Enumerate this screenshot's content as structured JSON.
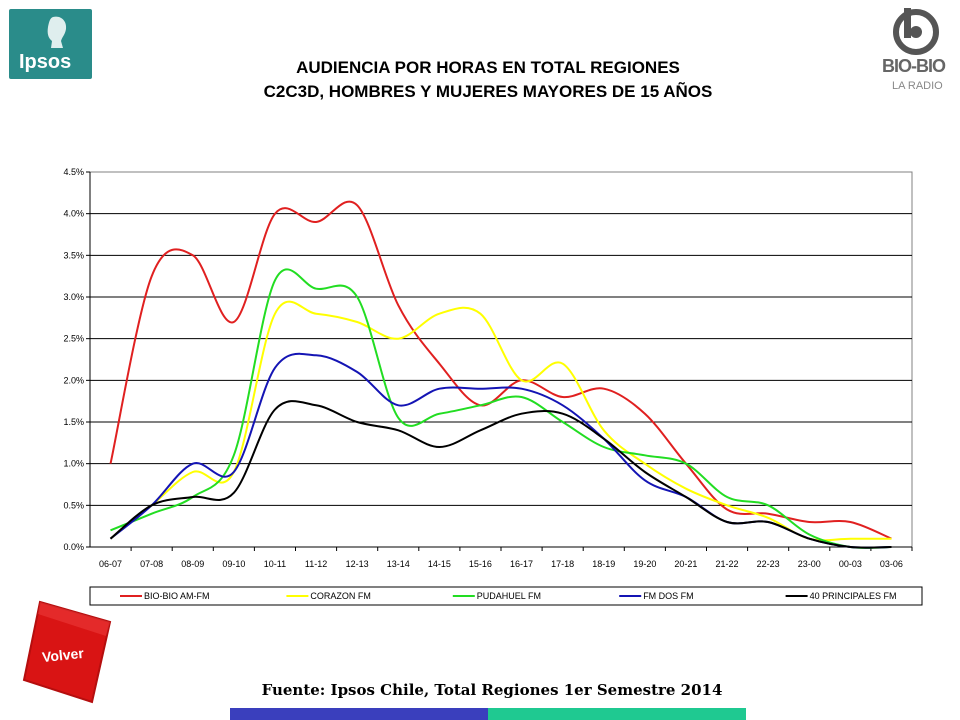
{
  "logos": {
    "left_brand": "Ipsos",
    "right_brand": "BIO-BIO",
    "right_brand_sub": "LA RADIO"
  },
  "header": {
    "title_line1": "AUDIENCIA POR HORAS EN TOTAL REGIONES",
    "title_line2": "C2C3D, HOMBRES Y MUJERES MAYORES DE 15 AÑOS"
  },
  "nav": {
    "back_label": "Volver"
  },
  "footer": {
    "source": "Fuente: Ipsos Chile, Total Regiones 1er Semestre 2014",
    "bar_colors": [
      "#3a3fbd",
      "#1fc991"
    ]
  },
  "chart_data": {
    "type": "line",
    "title": "",
    "xlabel": "",
    "ylabel": "",
    "ylim": [
      0,
      4.5
    ],
    "yticks": [
      "0.0%",
      "0.5%",
      "1.0%",
      "1.5%",
      "2.0%",
      "2.5%",
      "3.0%",
      "3.5%",
      "4.0%",
      "4.5%"
    ],
    "grid": true,
    "legend_position": "bottom",
    "smooth": true,
    "categories": [
      "06-07",
      "07-08",
      "08-09",
      "09-10",
      "10-11",
      "11-12",
      "12-13",
      "13-14",
      "14-15",
      "15-16",
      "16-17",
      "17-18",
      "18-19",
      "19-20",
      "20-21",
      "21-22",
      "22-23",
      "23-00",
      "00-03",
      "03-06"
    ],
    "series": [
      {
        "name": "BIO-BIO AM-FM",
        "color": "#e02020",
        "values": [
          1.0,
          3.25,
          3.5,
          2.7,
          4.0,
          3.9,
          4.1,
          2.9,
          2.2,
          1.7,
          2.0,
          1.8,
          1.9,
          1.6,
          1.0,
          0.45,
          0.4,
          0.3,
          0.3,
          0.1
        ]
      },
      {
        "name": "CORAZON FM",
        "color": "#ffff00",
        "values": [
          0.1,
          0.5,
          0.9,
          0.9,
          2.8,
          2.8,
          2.7,
          2.5,
          2.8,
          2.8,
          2.0,
          2.2,
          1.4,
          1.0,
          0.7,
          0.5,
          0.35,
          0.1,
          0.1,
          0.1
        ]
      },
      {
        "name": "PUDAHUEL FM",
        "color": "#22dd22",
        "values": [
          0.2,
          0.4,
          0.6,
          1.1,
          3.2,
          3.1,
          3.0,
          1.55,
          1.6,
          1.7,
          1.8,
          1.5,
          1.2,
          1.1,
          1.0,
          0.6,
          0.5,
          0.15,
          0.0,
          0.0
        ]
      },
      {
        "name": "FM DOS FM",
        "color": "#1414b4",
        "values": [
          0.1,
          0.5,
          1.0,
          0.9,
          2.15,
          2.3,
          2.1,
          1.7,
          1.9,
          1.9,
          1.9,
          1.7,
          1.3,
          0.8,
          0.6,
          0.3,
          0.3,
          0.1,
          0.0,
          0.0
        ]
      },
      {
        "name": "40 PRINCIPALES FM",
        "color": "#000000",
        "values": [
          0.1,
          0.5,
          0.6,
          0.65,
          1.65,
          1.7,
          1.5,
          1.4,
          1.2,
          1.4,
          1.6,
          1.6,
          1.3,
          0.9,
          0.6,
          0.3,
          0.3,
          0.1,
          0.0,
          0.0
        ]
      }
    ]
  }
}
